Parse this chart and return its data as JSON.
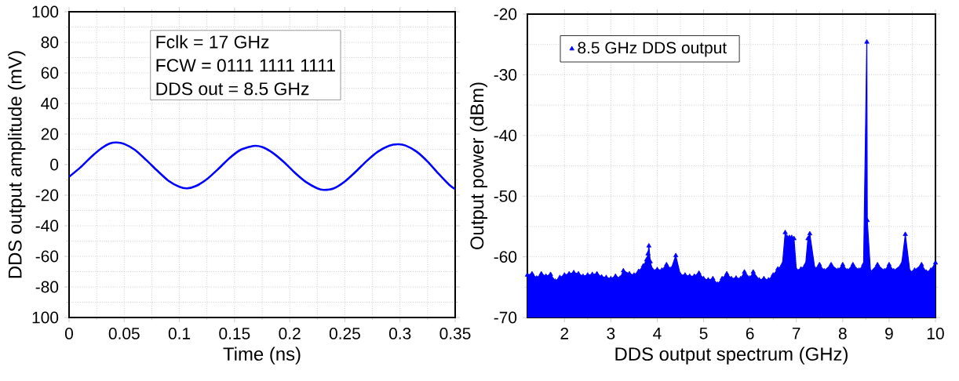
{
  "chart_data": [
    {
      "type": "line",
      "xlabel": "Time (ns)",
      "ylabel": "DDS output amplitude (mV)",
      "annotations": [
        "Fclk = 17 GHz",
        "FCW = 0111 1111 1111",
        "DDS out = 8.5 GHz"
      ],
      "xlim": [
        0,
        0.35
      ],
      "ylim": [
        -100,
        100
      ],
      "xticks": [
        0,
        0.05,
        0.1,
        0.15,
        0.2,
        0.25,
        0.3,
        0.35
      ],
      "yticks": [
        {
          "value": -100,
          "label": "100"
        },
        -80,
        -60,
        -40,
        -20,
        0,
        20,
        40,
        60,
        80,
        100
      ],
      "grid": true,
      "series": [
        {
          "color": "#0000ff",
          "x": [
            0,
            0.01,
            0.02,
            0.03,
            0.037,
            0.043,
            0.05,
            0.06,
            0.07,
            0.08,
            0.09,
            0.1,
            0.107,
            0.115,
            0.125,
            0.135,
            0.145,
            0.155,
            0.167,
            0.175,
            0.185,
            0.195,
            0.205,
            0.215,
            0.225,
            0.231,
            0.24,
            0.25,
            0.26,
            0.27,
            0.28,
            0.29,
            0.298,
            0.305,
            0.315,
            0.325,
            0.335,
            0.345,
            0.35
          ],
          "values": [
            -8,
            -2,
            5,
            11,
            13.8,
            14.5,
            13.5,
            9.5,
            3,
            -4,
            -10.5,
            -14.5,
            -15.5,
            -14,
            -9.5,
            -3,
            4,
            9.5,
            12.2,
            11.5,
            7.5,
            1.5,
            -5.5,
            -11.5,
            -15.5,
            -16.5,
            -15.5,
            -11,
            -4.5,
            2.5,
            8.5,
            12.3,
            13.3,
            12.5,
            8.5,
            2,
            -6,
            -13.5,
            -16
          ]
        }
      ]
    },
    {
      "type": "area",
      "xlabel": "DDS output spectrum (GHz)",
      "ylabel": "Output power (dBm)",
      "xlim": [
        1.2,
        10
      ],
      "ylim": [
        -70,
        -20
      ],
      "xticks": [
        2,
        3,
        4,
        5,
        6,
        7,
        8,
        9,
        10
      ],
      "yticks": [
        -70,
        -60,
        -50,
        -40,
        -30,
        -20
      ],
      "grid": true,
      "legend": "top left",
      "marker": "triangle",
      "series": [
        {
          "name": "8.5 GHz DDS output",
          "color": "#0000ff",
          "x": [
            1.2,
            1.3,
            1.4,
            1.5,
            1.6,
            1.7,
            1.8,
            1.9,
            2.0,
            2.1,
            2.2,
            2.3,
            2.4,
            2.5,
            2.6,
            2.7,
            2.8,
            2.9,
            3.0,
            3.1,
            3.2,
            3.27,
            3.4,
            3.5,
            3.6,
            3.7,
            3.77,
            3.8,
            3.82,
            3.85,
            3.9,
            4.0,
            4.1,
            4.2,
            4.3,
            4.4,
            4.5,
            4.6,
            4.7,
            4.8,
            4.9,
            5.0,
            5.1,
            5.2,
            5.3,
            5.4,
            5.5,
            5.6,
            5.7,
            5.8,
            5.88,
            6.0,
            6.07,
            6.2,
            6.3,
            6.4,
            6.5,
            6.6,
            6.7,
            6.76,
            6.8,
            6.85,
            6.9,
            6.95,
            7.0,
            7.1,
            7.2,
            7.25,
            7.29,
            7.4,
            7.5,
            7.6,
            7.75,
            7.9,
            8.0,
            8.1,
            8.22,
            8.35,
            8.45,
            8.52,
            8.53,
            8.6,
            8.75,
            8.9,
            9.0,
            9.1,
            9.27,
            9.35,
            9.45,
            9.55,
            9.7,
            9.8,
            9.9,
            10.0
          ],
          "values": [
            -63,
            -62.8,
            -63.5,
            -62.8,
            -63.2,
            -62.9,
            -64,
            -63.4,
            -63,
            -62.8,
            -62.6,
            -62.8,
            -63.2,
            -63,
            -62.9,
            -62.8,
            -63.3,
            -63.4,
            -63.6,
            -63.2,
            -63.5,
            -62.3,
            -62.8,
            -63,
            -62.4,
            -61.5,
            -60.5,
            -59.5,
            -58.2,
            -60.8,
            -62.2,
            -62.1,
            -62.2,
            -61.3,
            -62,
            -59.8,
            -63,
            -63,
            -63.2,
            -63.2,
            -62.7,
            -63.6,
            -63.8,
            -63.6,
            -64.5,
            -63.6,
            -62.8,
            -63.6,
            -63.5,
            -63.6,
            -62.5,
            -63.5,
            -62.5,
            -63.8,
            -63.6,
            -63.8,
            -63,
            -62,
            -61.3,
            -56,
            -56.8,
            -56.8,
            -56.8,
            -57,
            -62.2,
            -62,
            -61.3,
            -57,
            -56.2,
            -62,
            -61.3,
            -62.3,
            -61.3,
            -62.2,
            -61.3,
            -62.3,
            -61.3,
            -62.2,
            -61.3,
            -24.6,
            -54,
            -62.5,
            -61.3,
            -62.3,
            -61.3,
            -62.3,
            -61.3,
            -56.3,
            -62.5,
            -62.2,
            -61.3,
            -62.5,
            -62.2,
            -61
          ]
        }
      ]
    }
  ]
}
